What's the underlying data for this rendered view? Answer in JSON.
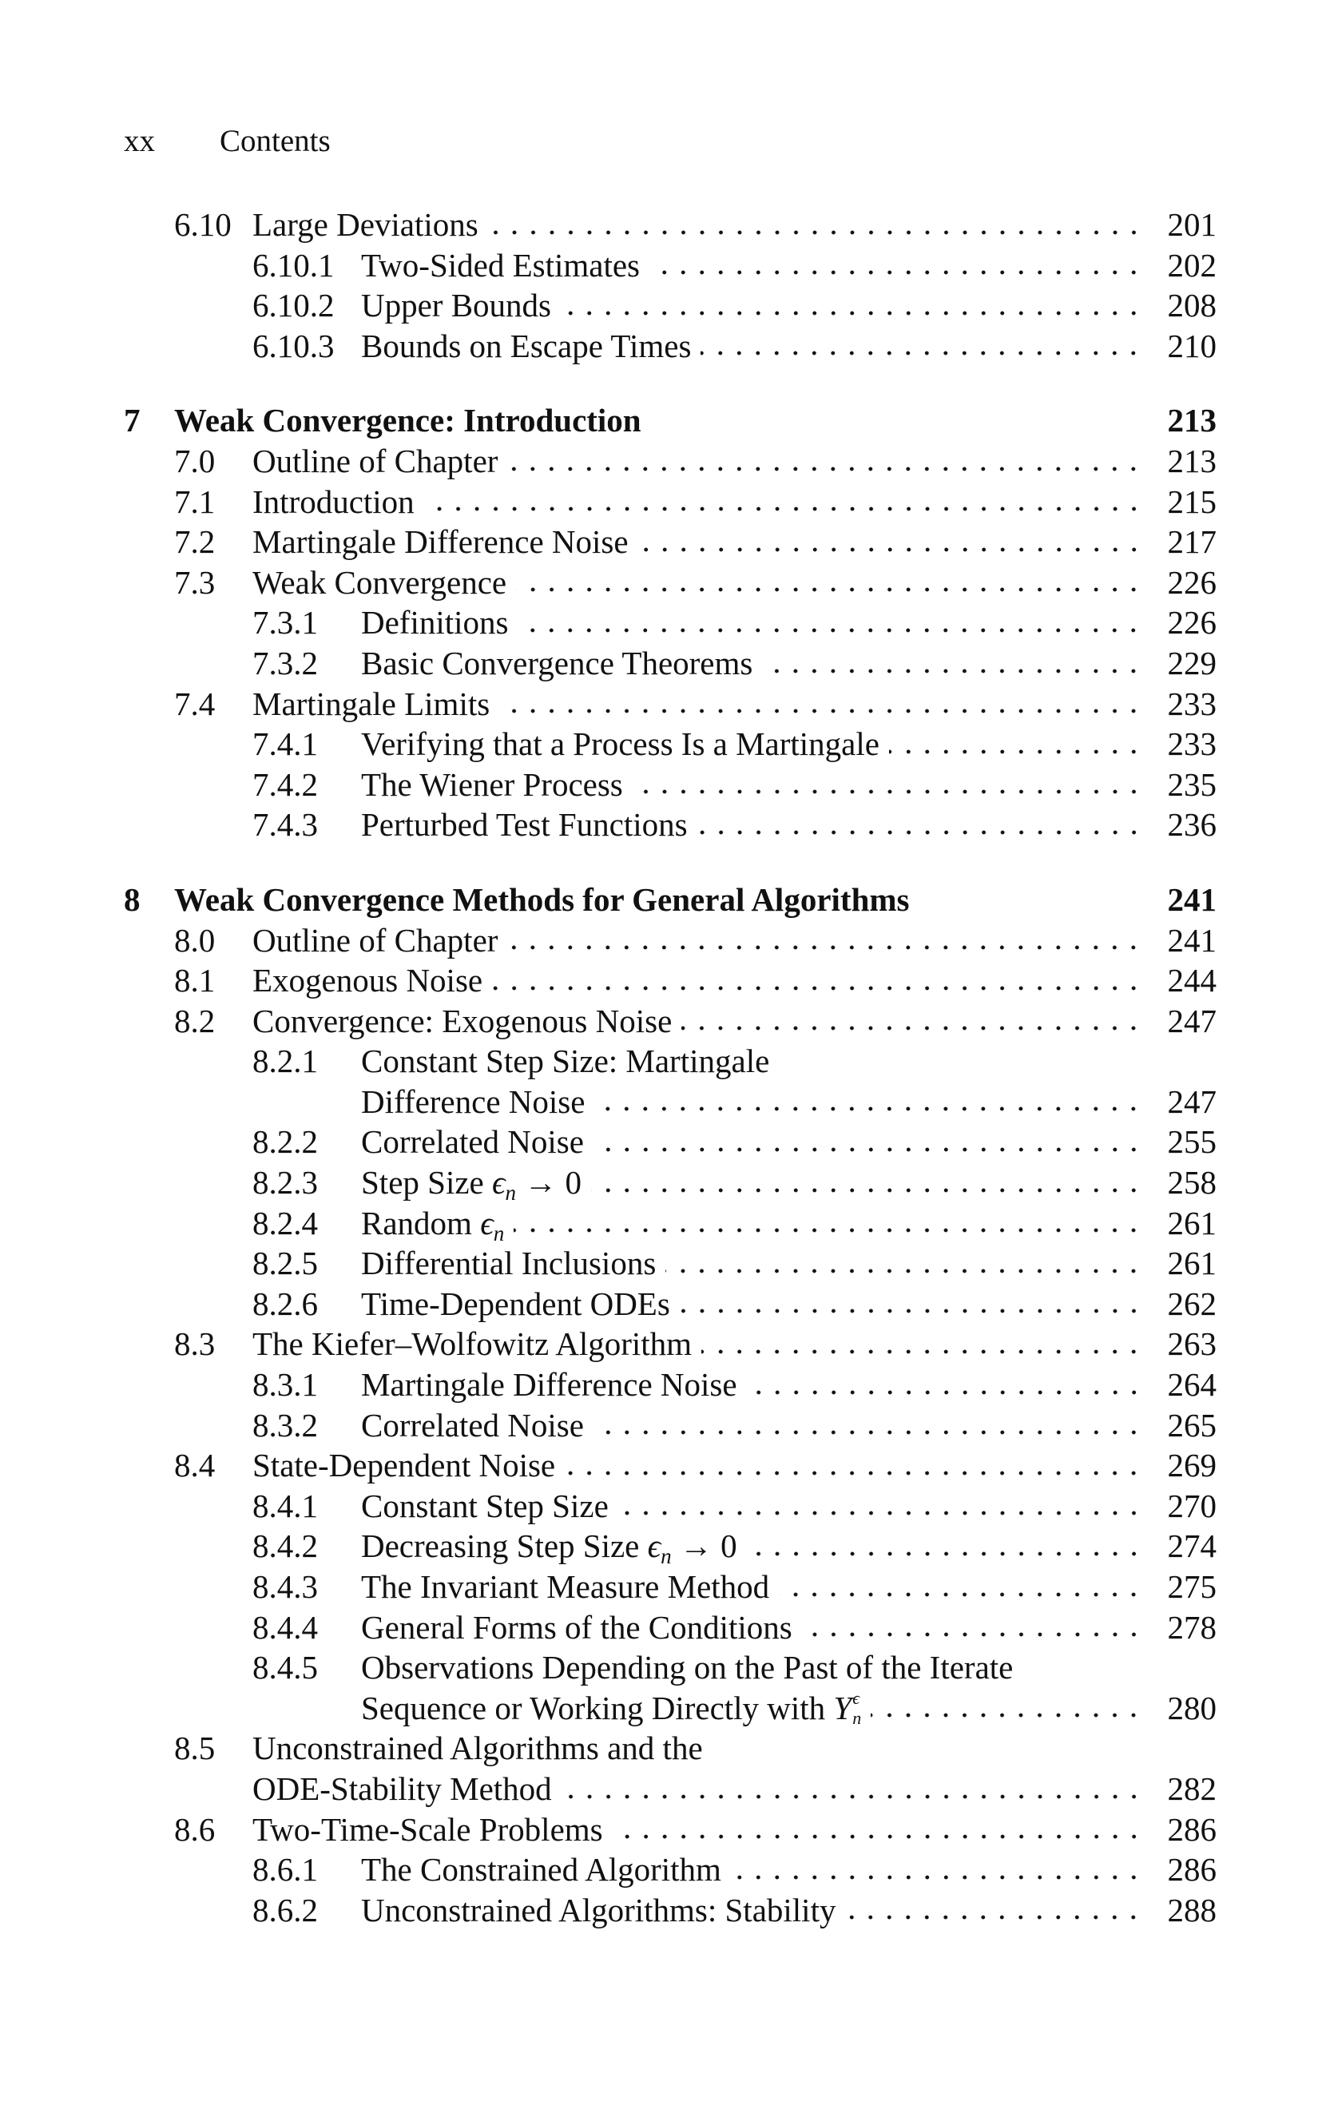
{
  "header": {
    "page_number": "xx",
    "running_title": "Contents"
  },
  "entries": [
    {
      "level": 2,
      "num": "6.10",
      "lines": [
        [
          {
            "t": "Large Deviations"
          }
        ]
      ],
      "page": "201"
    },
    {
      "level": 3,
      "num": "6.10.1",
      "lines": [
        [
          {
            "t": "Two-Sided Estimates"
          }
        ]
      ],
      "page": "202"
    },
    {
      "level": 3,
      "num": "6.10.2",
      "lines": [
        [
          {
            "t": "Upper Bounds"
          }
        ]
      ],
      "page": "208"
    },
    {
      "level": 3,
      "num": "6.10.3",
      "lines": [
        [
          {
            "t": "Bounds on Escape Times"
          }
        ]
      ],
      "page": "210"
    },
    {
      "level": 1,
      "num": "7",
      "lines": [
        [
          {
            "t": "Weak Convergence: Introduction"
          }
        ]
      ],
      "page": "213"
    },
    {
      "level": 2,
      "num": "7.0",
      "lines": [
        [
          {
            "t": "Outline of Chapter"
          }
        ]
      ],
      "page": "213"
    },
    {
      "level": 2,
      "num": "7.1",
      "lines": [
        [
          {
            "t": "Introduction"
          }
        ]
      ],
      "page": "215"
    },
    {
      "level": 2,
      "num": "7.2",
      "lines": [
        [
          {
            "t": "Martingale Difference Noise"
          }
        ]
      ],
      "page": "217"
    },
    {
      "level": 2,
      "num": "7.3",
      "lines": [
        [
          {
            "t": "Weak Convergence"
          }
        ]
      ],
      "page": "226"
    },
    {
      "level": 3,
      "num": "7.3.1",
      "lines": [
        [
          {
            "t": "Definitions"
          }
        ]
      ],
      "page": "226"
    },
    {
      "level": 3,
      "num": "7.3.2",
      "lines": [
        [
          {
            "t": "Basic Convergence Theorems"
          }
        ]
      ],
      "page": "229"
    },
    {
      "level": 2,
      "num": "7.4",
      "lines": [
        [
          {
            "t": "Martingale Limits"
          }
        ]
      ],
      "page": "233"
    },
    {
      "level": 3,
      "num": "7.4.1",
      "lines": [
        [
          {
            "t": "Verifying that a Process Is a Martingale"
          }
        ]
      ],
      "page": "233"
    },
    {
      "level": 3,
      "num": "7.4.2",
      "lines": [
        [
          {
            "t": "The Wiener Process"
          }
        ]
      ],
      "page": "235"
    },
    {
      "level": 3,
      "num": "7.4.3",
      "lines": [
        [
          {
            "t": "Perturbed Test Functions"
          }
        ]
      ],
      "page": "236"
    },
    {
      "level": 1,
      "num": "8",
      "lines": [
        [
          {
            "t": "Weak Convergence Methods for General Algorithms"
          }
        ]
      ],
      "page": "241"
    },
    {
      "level": 2,
      "num": "8.0",
      "lines": [
        [
          {
            "t": "Outline of Chapter"
          }
        ]
      ],
      "page": "241"
    },
    {
      "level": 2,
      "num": "8.1",
      "lines": [
        [
          {
            "t": "Exogenous Noise"
          }
        ]
      ],
      "page": "244"
    },
    {
      "level": 2,
      "num": "8.2",
      "lines": [
        [
          {
            "t": "Convergence: Exogenous Noise"
          }
        ]
      ],
      "page": "247"
    },
    {
      "level": 3,
      "num": "8.2.1",
      "lines": [
        [
          {
            "t": "Constant Step Size: Martingale"
          }
        ],
        [
          {
            "t": "Difference Noise"
          }
        ]
      ],
      "page": "247"
    },
    {
      "level": 3,
      "num": "8.2.2",
      "lines": [
        [
          {
            "t": "Correlated Noise"
          }
        ]
      ],
      "page": "255"
    },
    {
      "level": 3,
      "num": "8.2.3",
      "lines": [
        [
          {
            "t": "Step Size "
          },
          {
            "m": "ϵ",
            "sub": "n"
          },
          {
            "t": " → 0"
          }
        ]
      ],
      "page": "258"
    },
    {
      "level": 3,
      "num": "8.2.4",
      "lines": [
        [
          {
            "t": "Random "
          },
          {
            "m": "ϵ",
            "sub": "n"
          }
        ]
      ],
      "page": "261"
    },
    {
      "level": 3,
      "num": "8.2.5",
      "lines": [
        [
          {
            "t": "Differential Inclusions"
          }
        ]
      ],
      "page": "261"
    },
    {
      "level": 3,
      "num": "8.2.6",
      "lines": [
        [
          {
            "t": "Time-Dependent ODEs"
          }
        ]
      ],
      "page": "262"
    },
    {
      "level": 2,
      "num": "8.3",
      "lines": [
        [
          {
            "t": "The Kiefer–Wolfowitz Algorithm"
          }
        ]
      ],
      "page": "263"
    },
    {
      "level": 3,
      "num": "8.3.1",
      "lines": [
        [
          {
            "t": "Martingale Difference Noise"
          }
        ]
      ],
      "page": "264"
    },
    {
      "level": 3,
      "num": "8.3.2",
      "lines": [
        [
          {
            "t": "Correlated Noise"
          }
        ]
      ],
      "page": "265"
    },
    {
      "level": 2,
      "num": "8.4",
      "lines": [
        [
          {
            "t": "State-Dependent Noise"
          }
        ]
      ],
      "page": "269"
    },
    {
      "level": 3,
      "num": "8.4.1",
      "lines": [
        [
          {
            "t": "Constant Step Size"
          }
        ]
      ],
      "page": "270"
    },
    {
      "level": 3,
      "num": "8.4.2",
      "lines": [
        [
          {
            "t": "Decreasing Step Size "
          },
          {
            "m": "ϵ",
            "sub": "n"
          },
          {
            "t": " → 0"
          }
        ]
      ],
      "page": "274"
    },
    {
      "level": 3,
      "num": "8.4.3",
      "lines": [
        [
          {
            "t": "The Invariant Measure Method"
          }
        ]
      ],
      "page": "275"
    },
    {
      "level": 3,
      "num": "8.4.4",
      "lines": [
        [
          {
            "t": "General Forms of the Conditions"
          }
        ]
      ],
      "page": "278"
    },
    {
      "level": 3,
      "num": "8.4.5",
      "lines": [
        [
          {
            "t": "Observations Depending on the Past of the Iterate"
          }
        ],
        [
          {
            "t": "Sequence or Working Directly with "
          },
          {
            "m": "Y",
            "sup": "ϵ",
            "sub": "n"
          }
        ]
      ],
      "page": "280"
    },
    {
      "level": 2,
      "num": "8.5",
      "lines": [
        [
          {
            "t": "Unconstrained Algorithms and the"
          }
        ],
        [
          {
            "t": "ODE-Stability Method"
          }
        ]
      ],
      "page": "282"
    },
    {
      "level": 2,
      "num": "8.6",
      "lines": [
        [
          {
            "t": "Two-Time-Scale Problems"
          }
        ]
      ],
      "page": "286"
    },
    {
      "level": 3,
      "num": "8.6.1",
      "lines": [
        [
          {
            "t": "The Constrained Algorithm"
          }
        ]
      ],
      "page": "286"
    },
    {
      "level": 3,
      "num": "8.6.2",
      "lines": [
        [
          {
            "t": "Unconstrained Algorithms: Stability"
          }
        ]
      ],
      "page": "288"
    }
  ]
}
